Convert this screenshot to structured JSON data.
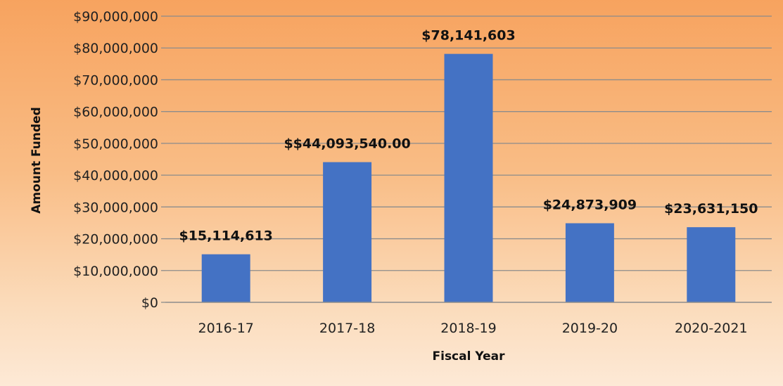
{
  "chart_data": {
    "type": "bar",
    "title": "",
    "xlabel": "Fiscal Year",
    "ylabel": "Amount Funded",
    "categories": [
      "2016-17",
      "2017-18",
      "2018-19",
      "2019-20",
      "2020-2021"
    ],
    "values": [
      15114613,
      44093540,
      78141603,
      24873909,
      23631150
    ],
    "data_labels": [
      "$15,114,613",
      "$$44,093,540.00",
      "$78,141,603",
      "$24,873,909",
      "$23,631,150"
    ],
    "ylim": [
      0,
      90000000
    ],
    "y_ticks": [
      0,
      10000000,
      20000000,
      30000000,
      40000000,
      50000000,
      60000000,
      70000000,
      80000000,
      90000000
    ],
    "y_tick_labels": [
      "$0",
      "$10,000,000",
      "$20,000,000",
      "$30,000,000",
      "$40,000,000",
      "$50,000,000",
      "$60,000,000",
      "$70,000,000",
      "$80,000,000",
      "$90,000,000"
    ],
    "grid": true,
    "legend": "none",
    "colors": {
      "bar": "#4472c4",
      "grid": "#8c8c8c"
    }
  }
}
